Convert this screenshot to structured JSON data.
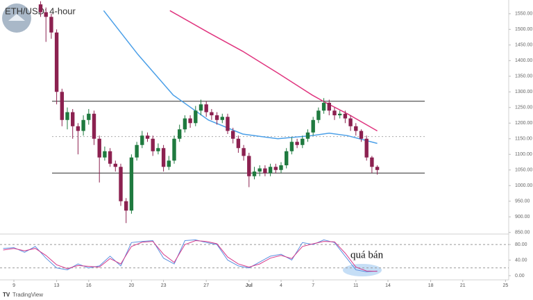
{
  "chart_data": {
    "type": "candlestick",
    "title": "ETH/USD: 4-hour",
    "annotation": "quá bán",
    "source": "TradingView",
    "up_color": "#1f7a3f",
    "down_color": "#8c2150",
    "x": [
      11.5,
      12,
      12.5,
      13,
      13.5,
      14,
      14.5,
      15,
      15.5,
      16,
      16.5,
      17,
      17.5,
      18,
      18.5,
      19,
      19.5,
      20,
      20.5,
      21,
      21.5,
      22,
      22.5,
      23,
      23.5,
      24,
      24.5,
      25,
      25.5,
      26,
      26.5,
      27,
      27.5,
      28,
      28.5,
      29,
      29.5,
      30,
      30.5,
      31,
      31.5,
      32,
      32.5,
      33,
      33.5,
      34,
      34.5,
      35,
      35.5,
      36,
      36.5,
      37,
      37.5,
      38,
      38.5,
      39,
      39.5,
      40,
      40.5,
      41,
      41.5,
      42,
      42.5,
      43
    ],
    "open": [
      1580,
      1555,
      1540,
      1490,
      1300,
      1210,
      1235,
      1190,
      1175,
      1210,
      1230,
      1150,
      1090,
      1110,
      1070,
      1060,
      950,
      920,
      1090,
      1130,
      1160,
      1150,
      1110,
      1120,
      1060,
      1080,
      1150,
      1180,
      1215,
      1200,
      1240,
      1260,
      1235,
      1225,
      1210,
      1220,
      1175,
      1150,
      1120,
      1095,
      1030,
      1045,
      1055,
      1040,
      1060,
      1050,
      1065,
      1110,
      1140,
      1130,
      1150,
      1170,
      1210,
      1240,
      1265,
      1240,
      1225,
      1230,
      1215,
      1190,
      1175,
      1150,
      1090,
      1060
    ],
    "high": [
      1590,
      1570,
      1550,
      1500,
      1310,
      1250,
      1245,
      1200,
      1225,
      1245,
      1240,
      1160,
      1125,
      1120,
      1080,
      1070,
      960,
      1100,
      1140,
      1175,
      1170,
      1160,
      1135,
      1130,
      1095,
      1160,
      1195,
      1225,
      1225,
      1255,
      1275,
      1270,
      1245,
      1235,
      1230,
      1230,
      1185,
      1160,
      1130,
      1105,
      1060,
      1065,
      1065,
      1070,
      1070,
      1075,
      1120,
      1155,
      1150,
      1160,
      1180,
      1220,
      1250,
      1280,
      1275,
      1250,
      1240,
      1240,
      1225,
      1200,
      1180,
      1160,
      1095,
      1065
    ],
    "low": [
      1540,
      1460,
      1470,
      1260,
      1190,
      1180,
      1150,
      1100,
      1160,
      1195,
      1130,
      1010,
      1080,
      1060,
      1045,
      935,
      880,
      910,
      1080,
      1120,
      1140,
      1095,
      1100,
      1045,
      1050,
      1070,
      1140,
      1170,
      1185,
      1190,
      1225,
      1220,
      1210,
      1195,
      1200,
      1165,
      1135,
      1105,
      1080,
      995,
      1020,
      1030,
      1030,
      1030,
      1040,
      1040,
      1055,
      1100,
      1120,
      1120,
      1140,
      1160,
      1200,
      1230,
      1225,
      1210,
      1215,
      1200,
      1175,
      1160,
      1140,
      1080,
      1040,
      1035
    ],
    "close": [
      1555,
      1540,
      1490,
      1300,
      1210,
      1235,
      1190,
      1175,
      1210,
      1230,
      1150,
      1090,
      1110,
      1070,
      1060,
      950,
      920,
      1090,
      1130,
      1160,
      1150,
      1110,
      1120,
      1060,
      1080,
      1150,
      1180,
      1215,
      1200,
      1240,
      1260,
      1235,
      1225,
      1210,
      1220,
      1175,
      1150,
      1120,
      1095,
      1030,
      1045,
      1055,
      1040,
      1060,
      1050,
      1065,
      1110,
      1140,
      1130,
      1150,
      1170,
      1210,
      1240,
      1265,
      1240,
      1225,
      1230,
      1215,
      1190,
      1175,
      1150,
      1090,
      1060,
      1050
    ],
    "overlays": [
      {
        "color": "#4a9fe8",
        "x": [
          17.4,
          20.6,
          23.9,
          27.2,
          30.4,
          33.7,
          36.9,
          38.5,
          40.2,
          43
        ],
        "values": [
          1560,
          1420,
          1290,
          1210,
          1165,
          1150,
          1160,
          1168,
          1160,
          1135
        ]
      },
      {
        "color": "#e0357f",
        "x": [
          23.6,
          27.2,
          30.4,
          33.7,
          36.9,
          38.2,
          40.2,
          43
        ],
        "values": [
          1560,
          1490,
          1430,
          1360,
          1290,
          1265,
          1230,
          1175
        ]
      }
    ],
    "levels": [
      {
        "value": 1270,
        "style": "solid"
      },
      {
        "value": 1040,
        "style": "solid"
      },
      {
        "value": 1157,
        "style": "dotted"
      }
    ],
    "xlim": [
      7.7,
      55.3
    ],
    "xticks": [
      9,
      13,
      16,
      20,
      23,
      27,
      {
        "value": 31,
        "label": "Jul"
      },
      {
        "value": 34,
        "label": "4"
      },
      {
        "value": 37,
        "label": "7"
      },
      {
        "value": 41,
        "label": "11"
      },
      {
        "value": 44,
        "label": "14"
      },
      {
        "value": 48,
        "label": "18"
      },
      {
        "value": 51,
        "label": "21"
      },
      {
        "value": 55,
        "label": "25"
      }
    ],
    "ylim": [
      845,
      1594
    ],
    "yticks": [
      {
        "value": 850,
        "label": "850.00"
      },
      {
        "value": 900,
        "label": "900.00"
      },
      {
        "value": 950,
        "label": "950.00"
      },
      {
        "value": 1000,
        "label": "1000.00"
      },
      {
        "value": 1050,
        "label": "1050.00"
      },
      {
        "value": 1100,
        "label": "1100.00"
      },
      {
        "value": 1150,
        "label": "1150.00"
      },
      {
        "value": 1200,
        "label": "1200.00"
      },
      {
        "value": 1250,
        "label": "1250.00"
      },
      {
        "value": 1300,
        "label": "1300.00"
      },
      {
        "value": 1350,
        "label": "1350.00"
      },
      {
        "value": 1400,
        "label": "1400.00"
      },
      {
        "value": 1450,
        "label": "1450.00"
      },
      {
        "value": 1500,
        "label": "1500.00"
      },
      {
        "value": 1550,
        "label": "1550.00"
      }
    ],
    "oscillator": {
      "ylim": [
        -9,
        107
      ],
      "yticks": [
        {
          "value": 0,
          "label": "0.00"
        },
        {
          "value": 40,
          "label": "40.00"
        },
        {
          "value": 80,
          "label": "80.00"
        }
      ],
      "levels": [
        80,
        20
      ],
      "series": [
        {
          "color": "#5b8fe0",
          "x": [
            8,
            9,
            10,
            11,
            12,
            13,
            14,
            15,
            16,
            17,
            18,
            19,
            20,
            21,
            22,
            23,
            24,
            25,
            26,
            27,
            28,
            29,
            30,
            31,
            32,
            33,
            34,
            35,
            36,
            37,
            38,
            39,
            40,
            41,
            42,
            43
          ],
          "values": [
            70,
            72,
            60,
            75,
            45,
            20,
            15,
            30,
            20,
            25,
            50,
            25,
            85,
            88,
            90,
            45,
            30,
            90,
            92,
            85,
            80,
            40,
            25,
            20,
            35,
            50,
            55,
            40,
            85,
            80,
            92,
            85,
            50,
            15,
            10,
            12
          ]
        },
        {
          "color": "#d63a8a",
          "x": [
            8,
            9,
            10,
            11,
            12,
            13,
            14,
            15,
            16,
            17,
            18,
            19,
            20,
            21,
            22,
            23,
            24,
            25,
            26,
            27,
            28,
            29,
            30,
            31,
            32,
            33,
            34,
            35,
            36,
            37,
            38,
            39,
            40,
            41,
            42,
            43
          ],
          "values": [
            66,
            70,
            64,
            70,
            52,
            28,
            18,
            26,
            24,
            22,
            44,
            30,
            75,
            86,
            88,
            55,
            34,
            80,
            90,
            88,
            82,
            48,
            30,
            22,
            30,
            45,
            52,
            44,
            75,
            82,
            88,
            87,
            58,
            22,
            12,
            11
          ]
        }
      ]
    }
  }
}
